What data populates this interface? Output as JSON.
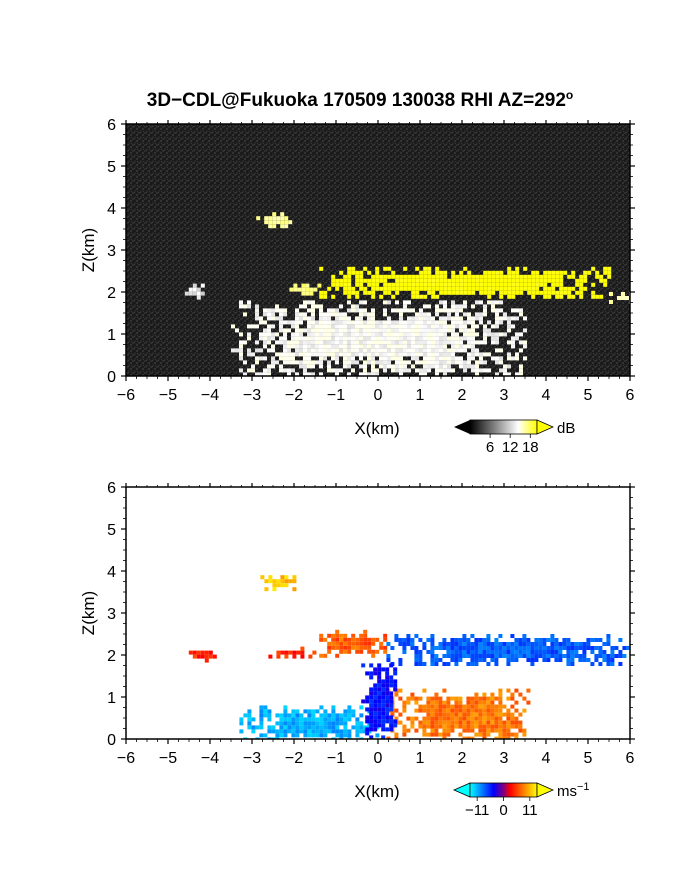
{
  "figure": {
    "title": "3D−CDL@Fukuoka 170509 130038 RHI AZ=292",
    "title_degree": "o"
  },
  "chart_data": [
    {
      "type": "heatmap",
      "name": "reflectivity",
      "xlabel": "X(km)",
      "ylabel": "Z(km)",
      "xlim": [
        -6,
        6
      ],
      "ylim": [
        0,
        6
      ],
      "xticks": [
        "−6",
        "−5",
        "−4",
        "−3",
        "−2",
        "−1",
        "0",
        "1",
        "2",
        "3",
        "4",
        "5",
        "6"
      ],
      "yticks": [
        "0",
        "1",
        "2",
        "3",
        "4",
        "5",
        "6"
      ],
      "colorbar": {
        "unit": "dB",
        "ticks": [
          "6",
          "12",
          "18"
        ],
        "range": [
          0,
          20
        ],
        "colors": [
          "#000000",
          "#ffffff",
          "#ffff00"
        ]
      },
      "background_range_dB": [
        0,
        4
      ],
      "features": [
        {
          "label": "upper cloud patch",
          "x": [
            -2.9,
            -2.0
          ],
          "z": [
            3.6,
            3.9
          ],
          "dB": 14
        },
        {
          "label": "near-field clutter",
          "x": [
            -3.5,
            3.5
          ],
          "z": [
            0,
            1.8
          ],
          "dB": 10
        },
        {
          "label": "low left echo",
          "x": [
            -4.6,
            -4.2
          ],
          "z": [
            1.9,
            2.2
          ],
          "dB": 9
        },
        {
          "label": "left cloud layer",
          "x": [
            -2.3,
            -1.4
          ],
          "z": [
            2.0,
            2.2
          ],
          "dB": 15
        },
        {
          "label": "main cloud base layer",
          "x": [
            -1.4,
            5.5
          ],
          "z": [
            1.9,
            2.6
          ],
          "dB": 20
        },
        {
          "label": "right edge layer",
          "x": [
            5.5,
            6.0
          ],
          "z": [
            1.8,
            2.0
          ],
          "dB": 13
        }
      ]
    },
    {
      "type": "heatmap",
      "name": "doppler velocity",
      "xlabel": "X(km)",
      "ylabel": "Z(km)",
      "xlim": [
        -6,
        6
      ],
      "ylim": [
        0,
        6
      ],
      "xticks": [
        "−6",
        "−5",
        "−4",
        "−3",
        "−2",
        "−1",
        "0",
        "1",
        "2",
        "3",
        "4",
        "5",
        "6"
      ],
      "yticks": [
        "0",
        "1",
        "2",
        "3",
        "4",
        "5",
        "6"
      ],
      "colorbar": {
        "unit": "ms",
        "unit_sup": "−1",
        "ticks": [
          "−11",
          "0",
          "11"
        ],
        "range": [
          -14,
          14
        ],
        "colors": [
          "#00ffff",
          "#0000ff",
          "#ff0000",
          "#ffff00"
        ]
      },
      "features": [
        {
          "label": "upper cloud patch",
          "x": [
            -2.8,
            -2.0
          ],
          "z": [
            3.6,
            3.9
          ],
          "v": 12
        },
        {
          "label": "low left echo",
          "x": [
            -4.6,
            -3.8
          ],
          "z": [
            1.9,
            2.2
          ],
          "v": 6
        },
        {
          "label": "left cloud layer",
          "x": [
            -2.8,
            -1.4
          ],
          "z": [
            2.0,
            2.2
          ],
          "v": 6
        },
        {
          "label": "layer left of origin",
          "x": [
            -1.4,
            0.2
          ],
          "z": [
            2.0,
            2.6
          ],
          "v": 8
        },
        {
          "label": "layer right of origin",
          "x": [
            0.2,
            6.0
          ],
          "z": [
            1.8,
            2.5
          ],
          "v": -8
        },
        {
          "label": "low-level negative flow",
          "x": [
            -3.3,
            0.0
          ],
          "z": [
            0,
            0.8
          ],
          "v": -11
        },
        {
          "label": "low-level positive flow",
          "x": [
            0.2,
            3.6
          ],
          "z": [
            0,
            1.2
          ],
          "v": 9
        },
        {
          "label": "central column",
          "x": [
            -0.4,
            0.4
          ],
          "z": [
            0,
            1.8
          ],
          "v": -5
        }
      ]
    }
  ]
}
